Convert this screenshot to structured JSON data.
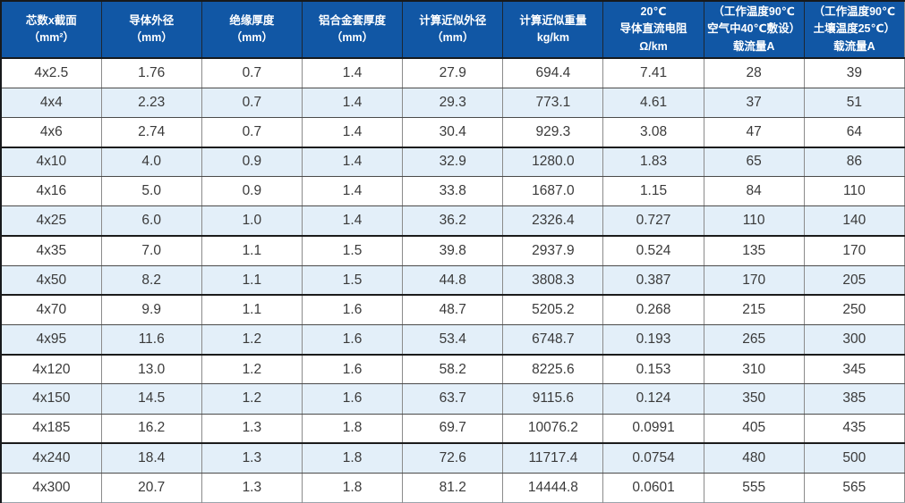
{
  "style": {
    "header_bg": "#1157a5",
    "header_text": "#ffffff",
    "row_bg": "#ffffff",
    "row_alt_bg": "#e3eff9",
    "body_text": "#3a3a3a",
    "border_dark": "#17191c",
    "thick_border_after_rows": [
      3,
      6,
      8,
      10,
      13
    ]
  },
  "table": {
    "headers": [
      {
        "lines": [
          "芯数x截面",
          "（mm²）"
        ]
      },
      {
        "lines": [
          "导体外径",
          "（mm）"
        ]
      },
      {
        "lines": [
          "绝缘厚度",
          "（mm）"
        ]
      },
      {
        "lines": [
          "铝合金套厚度",
          "（mm）"
        ]
      },
      {
        "lines": [
          "计算近似外径",
          "（mm）"
        ]
      },
      {
        "lines": [
          "计算近似重量",
          "kg/km"
        ]
      },
      {
        "lines": [
          "20℃",
          "导体直流电阻",
          "Ω/km"
        ]
      },
      {
        "lines": [
          "（工作温度90℃",
          "空气中40℃敷设）",
          "载流量A"
        ]
      },
      {
        "lines": [
          "（工作温度90℃",
          "土壤温度25℃）",
          "载流量A"
        ]
      }
    ],
    "rows": [
      [
        "4x2.5",
        "1.76",
        "0.7",
        "1.4",
        "27.9",
        "694.4",
        "7.41",
        "28",
        "39"
      ],
      [
        "4x4",
        "2.23",
        "0.7",
        "1.4",
        "29.3",
        "773.1",
        "4.61",
        "37",
        "51"
      ],
      [
        "4x6",
        "2.74",
        "0.7",
        "1.4",
        "30.4",
        "929.3",
        "3.08",
        "47",
        "64"
      ],
      [
        "4x10",
        "4.0",
        "0.9",
        "1.4",
        "32.9",
        "1280.0",
        "1.83",
        "65",
        "86"
      ],
      [
        "4x16",
        "5.0",
        "0.9",
        "1.4",
        "33.8",
        "1687.0",
        "1.15",
        "84",
        "110"
      ],
      [
        "4x25",
        "6.0",
        "1.0",
        "1.4",
        "36.2",
        "2326.4",
        "0.727",
        "110",
        "140"
      ],
      [
        "4x35",
        "7.0",
        "1.1",
        "1.5",
        "39.8",
        "2937.9",
        "0.524",
        "135",
        "170"
      ],
      [
        "4x50",
        "8.2",
        "1.1",
        "1.5",
        "44.8",
        "3808.3",
        "0.387",
        "170",
        "205"
      ],
      [
        "4x70",
        "9.9",
        "1.1",
        "1.6",
        "48.7",
        "5205.2",
        "0.268",
        "215",
        "250"
      ],
      [
        "4x95",
        "11.6",
        "1.2",
        "1.6",
        "53.4",
        "6748.7",
        "0.193",
        "265",
        "300"
      ],
      [
        "4x120",
        "13.0",
        "1.2",
        "1.6",
        "58.2",
        "8225.6",
        "0.153",
        "310",
        "345"
      ],
      [
        "4x150",
        "14.5",
        "1.2",
        "1.6",
        "63.7",
        "9115.6",
        "0.124",
        "350",
        "385"
      ],
      [
        "4x185",
        "16.2",
        "1.3",
        "1.8",
        "69.7",
        "10076.2",
        "0.0991",
        "405",
        "435"
      ],
      [
        "4x240",
        "18.4",
        "1.3",
        "1.8",
        "72.6",
        "11717.4",
        "0.0754",
        "480",
        "500"
      ],
      [
        "4x300",
        "20.7",
        "1.3",
        "1.8",
        "81.2",
        "14444.8",
        "0.0601",
        "555",
        "565"
      ]
    ]
  }
}
